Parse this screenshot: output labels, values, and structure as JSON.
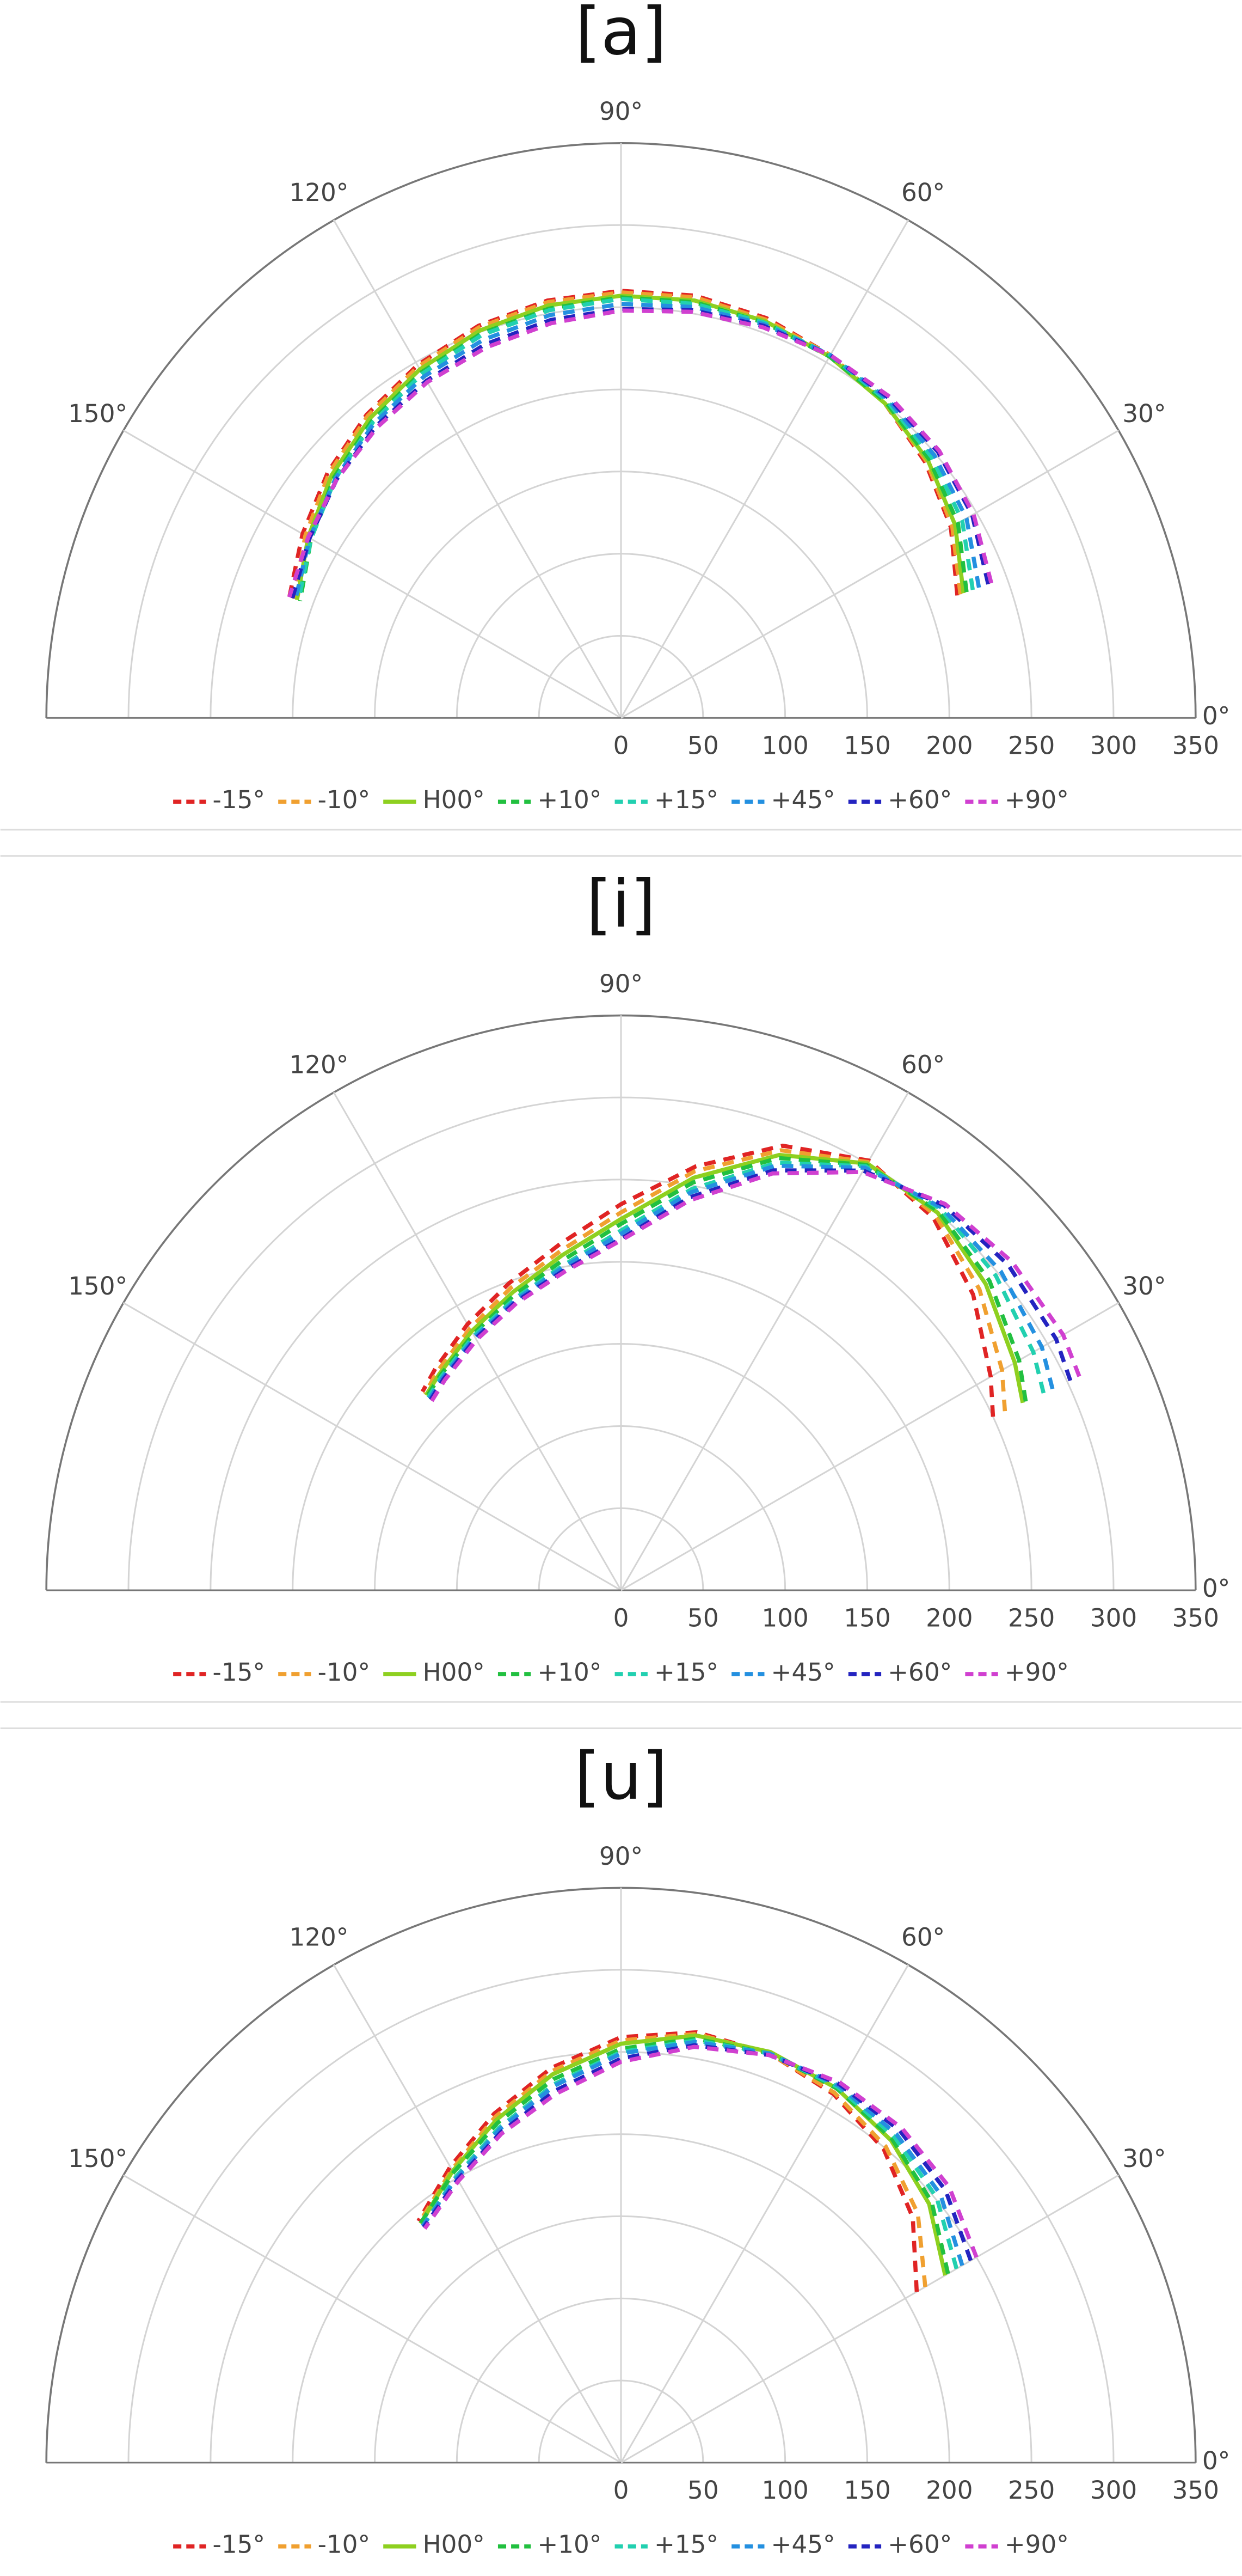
{
  "chart_data": [
    {
      "type": "polar",
      "title": "[a]",
      "theta": [
        20,
        30,
        40,
        50,
        60,
        70,
        80,
        90,
        100,
        110,
        120,
        130,
        140,
        150,
        160
      ],
      "rlim": [
        0,
        350
      ],
      "rticks": [
        0,
        50,
        100,
        150,
        200,
        250,
        300,
        350
      ],
      "thetaticks": [
        {
          "value": 0,
          "label": "0°"
        },
        {
          "value": 30,
          "label": "30°"
        },
        {
          "value": 60,
          "label": "60°"
        },
        {
          "value": 90,
          "label": "90°"
        },
        {
          "value": 120,
          "label": "120°"
        },
        {
          "value": 150,
          "label": "150°"
        }
      ],
      "series": [
        {
          "name": "-15°",
          "color": "#e02424",
          "line_style": "dashed",
          "values": [
            218,
            232,
            242,
            250,
            255,
            259,
            261,
            260,
            258,
            254,
            248,
            241,
            233,
            224,
            215
          ]
        },
        {
          "name": "-10°",
          "color": "#f0a030",
          "line_style": "dashed",
          "values": [
            220,
            233,
            243,
            250,
            255,
            258,
            260,
            259,
            257,
            253,
            247,
            240,
            232,
            222,
            212
          ]
        },
        {
          "name": "H00°",
          "color": "#8ed020",
          "line_style": "solid",
          "values": [
            222,
            235,
            244,
            250,
            254,
            257,
            258,
            257,
            255,
            251,
            245,
            238,
            230,
            220,
            210
          ]
        },
        {
          "name": "+10°",
          "color": "#22c040",
          "line_style": "dashed",
          "values": [
            224,
            237,
            245,
            251,
            254,
            256,
            257,
            256,
            253,
            249,
            243,
            236,
            228,
            218,
            208
          ]
        },
        {
          "name": "+15°",
          "color": "#22d0b0",
          "line_style": "dashed",
          "values": [
            228,
            240,
            247,
            252,
            255,
            256,
            256,
            255,
            252,
            248,
            242,
            235,
            227,
            218,
            209
          ]
        },
        {
          "name": "+45°",
          "color": "#2490e0",
          "line_style": "dashed",
          "values": [
            232,
            243,
            249,
            253,
            255,
            255,
            254,
            252,
            249,
            245,
            240,
            234,
            227,
            219,
            211
          ]
        },
        {
          "name": "+60°",
          "color": "#2424c0",
          "line_style": "dashed",
          "values": [
            238,
            247,
            252,
            254,
            255,
            254,
            252,
            249,
            246,
            242,
            237,
            232,
            226,
            219,
            213
          ]
        },
        {
          "name": "+90°",
          "color": "#d040d0",
          "line_style": "dashed",
          "values": [
            240,
            248,
            253,
            255,
            255,
            253,
            251,
            248,
            244,
            240,
            236,
            231,
            226,
            220,
            215
          ]
        }
      ]
    },
    {
      "type": "polar",
      "title": "[i]",
      "theta": [
        25,
        30,
        40,
        50,
        60,
        70,
        80,
        90,
        100,
        110,
        120,
        130,
        135
      ],
      "rlim": [
        0,
        350
      ],
      "rticks": [
        0,
        50,
        100,
        150,
        200,
        250,
        300,
        350
      ],
      "thetaticks": [
        {
          "value": 0,
          "label": "0°"
        },
        {
          "value": 30,
          "label": "30°"
        },
        {
          "value": 60,
          "label": "60°"
        },
        {
          "value": 90,
          "label": "90°"
        },
        {
          "value": 120,
          "label": "120°"
        },
        {
          "value": 150,
          "label": "150°"
        }
      ],
      "series": [
        {
          "name": "-15°",
          "color": "#e02424",
          "line_style": "dashed",
          "values": [
            250,
            260,
            280,
            296,
            302,
            288,
            262,
            235,
            214,
            199,
            187,
            176,
            171
          ]
        },
        {
          "name": "-10°",
          "color": "#f0a030",
          "line_style": "dashed",
          "values": [
            258,
            268,
            285,
            298,
            301,
            285,
            259,
            230,
            210,
            196,
            184,
            174,
            169
          ]
        },
        {
          "name": "H00°",
          "color": "#8ed020",
          "line_style": "solid",
          "values": [
            270,
            277,
            290,
            300,
            300,
            282,
            255,
            226,
            207,
            193,
            182,
            172,
            168
          ]
        },
        {
          "name": "+10°",
          "color": "#22c040",
          "line_style": "dashed",
          "values": [
            272,
            280,
            293,
            301,
            299,
            280,
            252,
            223,
            204,
            191,
            180,
            171,
            167
          ]
        },
        {
          "name": "+15°",
          "color": "#22d0b0",
          "line_style": "dashed",
          "values": [
            284,
            290,
            298,
            303,
            298,
            277,
            248,
            219,
            201,
            189,
            179,
            170,
            166
          ]
        },
        {
          "name": "+45°",
          "color": "#2490e0",
          "line_style": "dashed",
          "values": [
            290,
            296,
            302,
            304,
            297,
            275,
            246,
            217,
            200,
            188,
            178,
            169,
            165
          ]
        },
        {
          "name": "+60°",
          "color": "#2424c0",
          "line_style": "dashed",
          "values": [
            302,
            306,
            308,
            306,
            295,
            272,
            243,
            214,
            198,
            187,
            177,
            168,
            164
          ]
        },
        {
          "name": "+90°",
          "color": "#d040d0",
          "line_style": "dashed",
          "values": [
            308,
            311,
            311,
            307,
            294,
            270,
            241,
            213,
            197,
            186,
            176,
            167,
            163
          ]
        }
      ]
    },
    {
      "type": "polar",
      "title": "[u]",
      "theta": [
        30,
        40,
        50,
        60,
        70,
        80,
        90,
        100,
        110,
        120,
        130
      ],
      "rlim": [
        0,
        350
      ],
      "rticks": [
        0,
        50,
        100,
        150,
        200,
        250,
        300,
        350
      ],
      "thetaticks": [
        {
          "value": 0,
          "label": "0°"
        },
        {
          "value": 30,
          "label": "30°"
        },
        {
          "value": 60,
          "label": "60°"
        },
        {
          "value": 90,
          "label": "90°"
        },
        {
          "value": 120,
          "label": "120°"
        },
        {
          "value": 150,
          "label": "150°"
        }
      ],
      "series": [
        {
          "name": "-15°",
          "color": "#e02424",
          "line_style": "dashed",
          "values": [
            208,
            232,
            249,
            259,
            265,
            266,
            259,
            244,
            226,
            208,
            192
          ]
        },
        {
          "name": "-10°",
          "color": "#f0a030",
          "line_style": "dashed",
          "values": [
            214,
            236,
            251,
            260,
            265,
            265,
            257,
            242,
            224,
            206,
            191
          ]
        },
        {
          "name": "H00°",
          "color": "#8ed020",
          "line_style": "solid",
          "values": [
            228,
            245,
            256,
            263,
            266,
            264,
            255,
            240,
            222,
            205,
            190
          ]
        },
        {
          "name": "+10°",
          "color": "#22c040",
          "line_style": "dashed",
          "values": [
            230,
            247,
            257,
            263,
            265,
            262,
            252,
            237,
            220,
            204,
            190
          ]
        },
        {
          "name": "+15°",
          "color": "#22d0b0",
          "line_style": "dashed",
          "values": [
            236,
            251,
            259,
            264,
            265,
            261,
            250,
            234,
            217,
            201,
            188
          ]
        },
        {
          "name": "+45°",
          "color": "#2490e0",
          "line_style": "dashed",
          "values": [
            240,
            254,
            261,
            265,
            265,
            260,
            249,
            233,
            216,
            200,
            188
          ]
        },
        {
          "name": "+60°",
          "color": "#2424c0",
          "line_style": "dashed",
          "values": [
            246,
            258,
            264,
            266,
            264,
            258,
            246,
            230,
            214,
            199,
            187
          ]
        },
        {
          "name": "+90°",
          "color": "#d040d0",
          "line_style": "dashed",
          "values": [
            250,
            261,
            266,
            267,
            264,
            257,
            244,
            228,
            213,
            198,
            186
          ]
        }
      ]
    }
  ]
}
